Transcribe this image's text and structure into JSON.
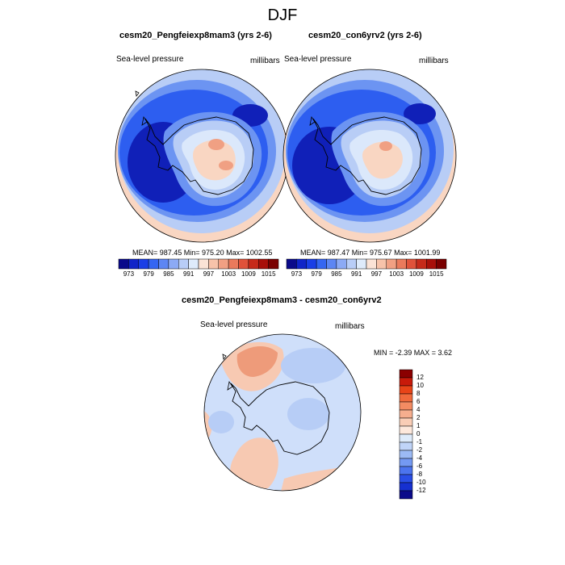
{
  "figure": {
    "season_title": "DJF"
  },
  "colors": {
    "ocean_deep": "#1020b8",
    "ocean_mid": "#2d5ef0",
    "ocean_light": "#6c94f2",
    "shelf": "#b8cdf6",
    "ice_pale": "#dbe8fb",
    "warm_light": "#f9d6c2",
    "warm_mid": "#f0a083",
    "diff_pos_light": "#f7c9b2",
    "diff_pos_mid": "#ee9b7a",
    "diff_neg_light": "#cfdffa",
    "diff_neg_mid": "#b7cdf6",
    "coast": "#000000"
  },
  "chart_data": [
    {
      "type": "heatmap",
      "title": "cesm20_Pengfeiexp8mam3 (yrs 2-6)",
      "variable": "Sea-level pressure",
      "units": "millibars",
      "stats": "MEAN= 987.45   Min= 975.20   Max= 1002.55",
      "mean": 987.45,
      "min": 975.2,
      "max": 1002.55,
      "levels": [
        "973",
        "979",
        "985",
        "991",
        "997",
        "1003",
        "1009",
        "1015"
      ],
      "colorbar_colors": [
        "#0a0a8a",
        "#1024c8",
        "#1a3ee6",
        "#3566f2",
        "#5d86f3",
        "#8caaf5",
        "#b8cdf7",
        "#deebfb",
        "#fbe3d6",
        "#f7c3aa",
        "#f1a083",
        "#ea7a5c",
        "#e0523a",
        "#c62a1a",
        "#a8100a",
        "#7a0000"
      ]
    },
    {
      "type": "heatmap",
      "title": "cesm20_con6yrv2 (yrs 2-6)",
      "variable": "Sea-level pressure",
      "units": "millibars",
      "stats": "MEAN= 987.47   Min= 975.67   Max= 1001.99",
      "mean": 987.47,
      "min": 975.67,
      "max": 1001.99,
      "levels": [
        "973",
        "979",
        "985",
        "991",
        "997",
        "1003",
        "1009",
        "1015"
      ],
      "colorbar_colors": [
        "#0a0a8a",
        "#1024c8",
        "#1a3ee6",
        "#3566f2",
        "#5d86f3",
        "#8caaf5",
        "#b8cdf7",
        "#deebfb",
        "#fbe3d6",
        "#f7c3aa",
        "#f1a083",
        "#ea7a5c",
        "#e0523a",
        "#c62a1a",
        "#a8100a",
        "#7a0000"
      ]
    },
    {
      "type": "heatmap",
      "title": "cesm20_Pengfeiexp8mam3 - cesm20_con6yrv2",
      "variable": "Sea-level pressure",
      "units": "millibars",
      "stats": "MIN =  -2.39 MAX =   3.62",
      "min": -2.39,
      "max": 3.62,
      "levels": [
        "12",
        "10",
        "8",
        "6",
        "4",
        "2",
        "1",
        "0",
        "-1",
        "-2",
        "-4",
        "-6",
        "-8",
        "-10",
        "-12"
      ],
      "colorbar_colors": [
        "#8b0000",
        "#c81a0a",
        "#e84418",
        "#f06a3c",
        "#f38b62",
        "#f6ae8e",
        "#f9cdb6",
        "#fde8dc",
        "#deebfb",
        "#c0d4f8",
        "#9cbaf5",
        "#7499f2",
        "#4c74ee",
        "#2a4ee6",
        "#1630d0",
        "#0a0a8a"
      ]
    }
  ]
}
